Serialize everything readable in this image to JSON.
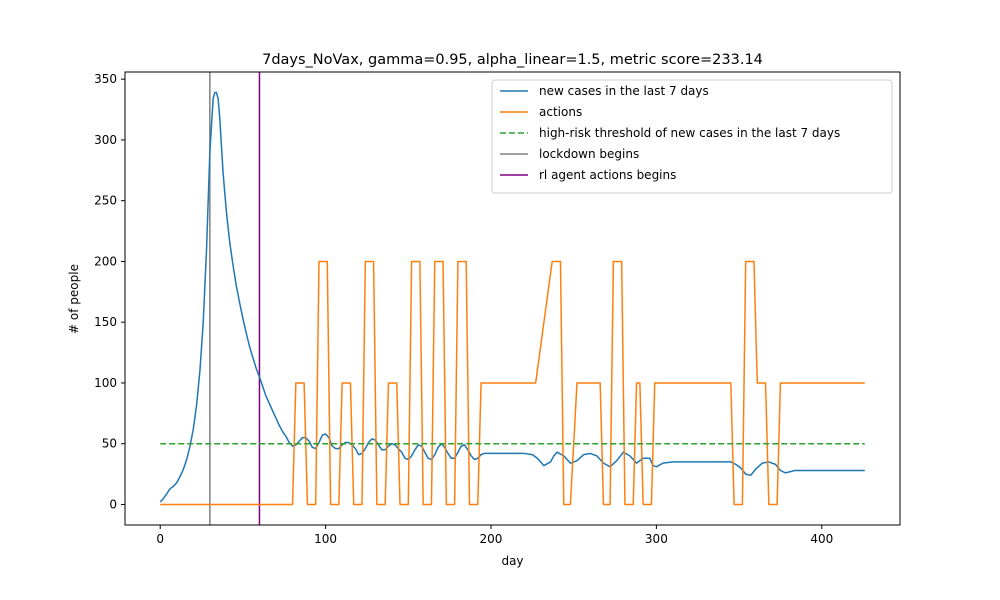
{
  "chart_data": {
    "type": "line",
    "title": "7days_NoVax, gamma=0.95, alpha_linear=1.5, metric score=233.14",
    "xlabel": "day",
    "ylabel": "# of people",
    "xlim": [
      -21.3,
      447.3
    ],
    "ylim": [
      -16.9,
      355.9
    ],
    "xticks": [
      0,
      100,
      200,
      300,
      400
    ],
    "yticks": [
      0,
      50,
      100,
      150,
      200,
      250,
      300,
      350
    ],
    "grid": false,
    "legend_position": "top-right",
    "series": [
      {
        "name": "new cases in the last 7 days",
        "color": "#1f77b4",
        "style": "solid",
        "x": [
          0,
          2,
          4,
          6,
          8,
          10,
          12,
          14,
          16,
          18,
          20,
          22,
          24,
          26,
          28,
          30,
          32,
          33,
          34,
          35,
          36,
          38,
          40,
          42,
          44,
          46,
          48,
          50,
          52,
          54,
          56,
          58,
          60,
          62,
          64,
          66,
          68,
          70,
          72,
          74,
          76,
          78,
          80,
          82,
          84,
          86,
          88,
          90,
          92,
          94,
          96,
          98,
          100,
          102,
          104,
          106,
          108,
          110,
          112,
          114,
          116,
          118,
          120,
          122,
          124,
          126,
          128,
          130,
          132,
          134,
          136,
          138,
          140,
          142,
          144,
          146,
          148,
          150,
          152,
          154,
          156,
          158,
          160,
          162,
          164,
          166,
          168,
          170,
          172,
          174,
          176,
          178,
          180,
          182,
          184,
          186,
          188,
          190,
          192,
          194,
          196,
          198,
          200,
          205,
          210,
          215,
          220,
          225,
          228,
          232,
          236,
          238,
          240,
          244,
          248,
          252,
          256,
          260,
          264,
          268,
          272,
          276,
          280,
          284,
          288,
          292,
          296,
          298,
          300,
          304,
          310,
          320,
          330,
          340,
          345,
          348,
          351,
          354,
          357,
          360,
          364,
          368,
          372,
          375,
          378,
          381,
          384,
          390,
          400,
          410,
          420,
          426
        ],
        "values": [
          2,
          5,
          9,
          13,
          15,
          18,
          23,
          29,
          37,
          48,
          62,
          82,
          110,
          150,
          210,
          290,
          334,
          339,
          339,
          334,
          318,
          273,
          241,
          216,
          197,
          180,
          166,
          153,
          141,
          130,
          121,
          112,
          105,
          97,
          89,
          83,
          77,
          71,
          65,
          60,
          56,
          51,
          48,
          49,
          52,
          55,
          55,
          52,
          47,
          46,
          51,
          57,
          58,
          55,
          48,
          46,
          46,
          49,
          51,
          51,
          49,
          46,
          41,
          42,
          46,
          51,
          54,
          53,
          49,
          45,
          45,
          48,
          50,
          49,
          46,
          43,
          38,
          37,
          40,
          45,
          49,
          48,
          43,
          38,
          37,
          41,
          47,
          50,
          47,
          42,
          38,
          38,
          43,
          48,
          49,
          45,
          40,
          37,
          38,
          41,
          42,
          42,
          42,
          42,
          42,
          42,
          42,
          41,
          38,
          32,
          35,
          40,
          43,
          40,
          34,
          36,
          41,
          42,
          40,
          34,
          31,
          36,
          43,
          40,
          34,
          38,
          38,
          32,
          31,
          34,
          35,
          35,
          35,
          35,
          35,
          33,
          30,
          25,
          24,
          29,
          34,
          35,
          33,
          28,
          26,
          27,
          28,
          28,
          28,
          28,
          28,
          28
        ]
      },
      {
        "name": "actions",
        "color": "#ff7f0e",
        "style": "solid",
        "x": [
          0,
          80,
          82,
          87,
          89,
          94,
          96,
          101,
          103,
          108,
          110,
          115,
          117,
          122,
          124,
          129,
          131,
          136,
          138,
          143,
          145,
          150,
          152,
          157,
          159,
          164,
          166,
          171,
          173,
          178,
          180,
          185,
          187,
          192,
          194,
          227,
          237,
          242,
          244,
          248,
          252,
          266,
          268,
          272,
          274,
          279,
          281,
          286,
          288,
          290,
          292,
          297,
          299,
          345,
          347,
          352,
          354,
          359,
          361,
          366,
          368,
          373,
          375,
          426
        ],
        "values": [
          0,
          0,
          100,
          100,
          0,
          0,
          200,
          200,
          0,
          0,
          100,
          100,
          0,
          0,
          200,
          200,
          0,
          0,
          100,
          100,
          0,
          0,
          200,
          200,
          0,
          0,
          200,
          200,
          0,
          0,
          200,
          200,
          0,
          0,
          100,
          100,
          200,
          200,
          0,
          0,
          100,
          100,
          0,
          0,
          200,
          200,
          0,
          0,
          100,
          100,
          0,
          0,
          100,
          100,
          0,
          0,
          200,
          200,
          100,
          100,
          0,
          0,
          100,
          100
        ]
      },
      {
        "name": "high-risk threshold of new cases in the last 7 days",
        "color": "#2ca02c",
        "style": "dashed",
        "x": [
          0,
          426
        ],
        "values": [
          50,
          50
        ]
      }
    ],
    "vlines": [
      {
        "name": "lockdown begins",
        "x": 30,
        "color": "#808080"
      },
      {
        "name": "rl agent actions begins",
        "x": 60,
        "color": "#800080"
      }
    ]
  }
}
